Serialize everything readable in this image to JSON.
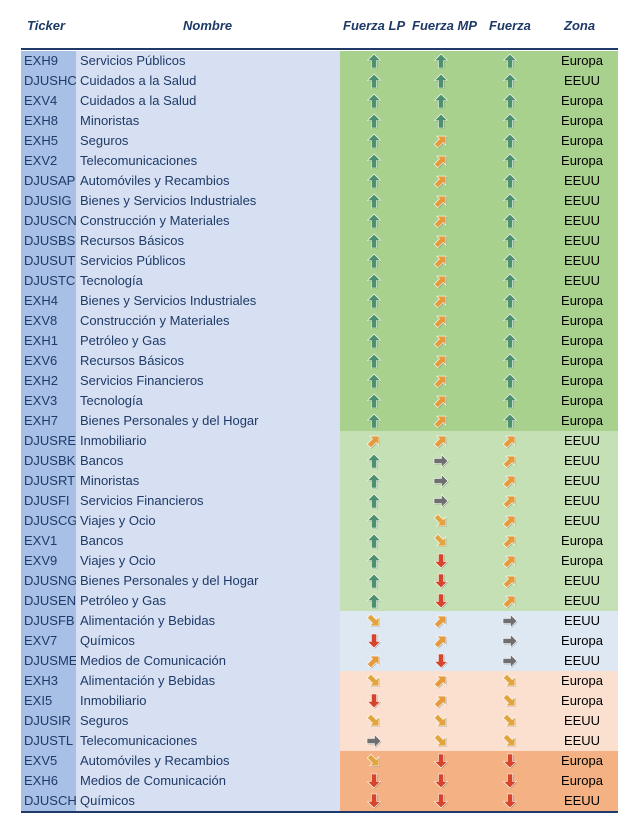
{
  "headers": {
    "ticker": "Ticker",
    "nombre": "Nombre",
    "fuerza_lp": "Fuerza LP",
    "fuerza_mp": "Fuerza MP",
    "fuerza": "Fuerza",
    "zona": "Zona"
  },
  "colors": {
    "up": "#4e8f6e",
    "diag_up": "#e59b3c",
    "right": "#6f6f6f",
    "diag_down": "#e2a43e",
    "down": "#d6452b",
    "zones": {
      "dkgreen": "#a9d18e",
      "ltgreen": "#c5e0b4",
      "ltblue": "#dde8f3",
      "peach": "#fbe0d0",
      "orange": "#f4b183"
    }
  },
  "icon_names": {
    "up": "arrow-up-icon",
    "diag_up": "arrow-up-right-icon",
    "right": "arrow-right-icon",
    "diag_down": "arrow-down-right-icon",
    "down": "arrow-down-icon"
  },
  "rows": [
    {
      "ticker": "EXH9",
      "nombre": "Servicios Públicos",
      "lp": "up",
      "mp": "up",
      "f": "up",
      "zona": "Europa",
      "bg": "dkgreen"
    },
    {
      "ticker": "DJUSHC",
      "nombre": "Cuidados a la Salud",
      "lp": "up",
      "mp": "up",
      "f": "up",
      "zona": "EEUU",
      "bg": "dkgreen"
    },
    {
      "ticker": "EXV4",
      "nombre": "Cuidados a la Salud",
      "lp": "up",
      "mp": "up",
      "f": "up",
      "zona": "Europa",
      "bg": "dkgreen"
    },
    {
      "ticker": "EXH8",
      "nombre": "Minoristas",
      "lp": "up",
      "mp": "up",
      "f": "up",
      "zona": "Europa",
      "bg": "dkgreen"
    },
    {
      "ticker": "EXH5",
      "nombre": "Seguros",
      "lp": "up",
      "mp": "diag_up",
      "f": "up",
      "zona": "Europa",
      "bg": "dkgreen"
    },
    {
      "ticker": "EXV2",
      "nombre": "Telecomunicaciones",
      "lp": "up",
      "mp": "diag_up",
      "f": "up",
      "zona": "Europa",
      "bg": "dkgreen"
    },
    {
      "ticker": "DJUSAP",
      "nombre": "Automóviles y Recambios",
      "lp": "up",
      "mp": "diag_up",
      "f": "up",
      "zona": "EEUU",
      "bg": "dkgreen"
    },
    {
      "ticker": "DJUSIG",
      "nombre": "Bienes y Servicios Industriales",
      "lp": "up",
      "mp": "diag_up",
      "f": "up",
      "zona": "EEUU",
      "bg": "dkgreen"
    },
    {
      "ticker": "DJUSCN",
      "nombre": "Construcción y Materiales",
      "lp": "up",
      "mp": "diag_up",
      "f": "up",
      "zona": "EEUU",
      "bg": "dkgreen"
    },
    {
      "ticker": "DJUSBS",
      "nombre": "Recursos Básicos",
      "lp": "up",
      "mp": "diag_up",
      "f": "up",
      "zona": "EEUU",
      "bg": "dkgreen"
    },
    {
      "ticker": "DJUSUT",
      "nombre": "Servicios Públicos",
      "lp": "up",
      "mp": "diag_up",
      "f": "up",
      "zona": "EEUU",
      "bg": "dkgreen"
    },
    {
      "ticker": "DJUSTC",
      "nombre": "Tecnología",
      "lp": "up",
      "mp": "diag_up",
      "f": "up",
      "zona": "EEUU",
      "bg": "dkgreen"
    },
    {
      "ticker": "EXH4",
      "nombre": "Bienes y Servicios Industriales",
      "lp": "up",
      "mp": "diag_up",
      "f": "up",
      "zona": "Europa",
      "bg": "dkgreen"
    },
    {
      "ticker": "EXV8",
      "nombre": "Construcción y Materiales",
      "lp": "up",
      "mp": "diag_up",
      "f": "up",
      "zona": "Europa",
      "bg": "dkgreen"
    },
    {
      "ticker": "EXH1",
      "nombre": "Petróleo y Gas",
      "lp": "up",
      "mp": "diag_up",
      "f": "up",
      "zona": "Europa",
      "bg": "dkgreen"
    },
    {
      "ticker": "EXV6",
      "nombre": "Recursos Básicos",
      "lp": "up",
      "mp": "diag_up",
      "f": "up",
      "zona": "Europa",
      "bg": "dkgreen"
    },
    {
      "ticker": "EXH2",
      "nombre": "Servicios Financieros",
      "lp": "up",
      "mp": "diag_up",
      "f": "up",
      "zona": "Europa",
      "bg": "dkgreen"
    },
    {
      "ticker": "EXV3",
      "nombre": "Tecnología",
      "lp": "up",
      "mp": "diag_up",
      "f": "up",
      "zona": "Europa",
      "bg": "dkgreen"
    },
    {
      "ticker": "EXH7",
      "nombre": "Bienes Personales y del Hogar",
      "lp": "up",
      "mp": "diag_up",
      "f": "up",
      "zona": "Europa",
      "bg": "dkgreen"
    },
    {
      "ticker": "DJUSRE",
      "nombre": "Inmobiliario",
      "lp": "diag_up",
      "mp": "diag_up",
      "f": "diag_up",
      "zona": "EEUU",
      "bg": "ltgreen"
    },
    {
      "ticker": "DJUSBK",
      "nombre": "Bancos",
      "lp": "up",
      "mp": "right",
      "f": "diag_up",
      "zona": "EEUU",
      "bg": "ltgreen"
    },
    {
      "ticker": "DJUSRT",
      "nombre": "Minoristas",
      "lp": "up",
      "mp": "right",
      "f": "diag_up",
      "zona": "EEUU",
      "bg": "ltgreen"
    },
    {
      "ticker": "DJUSFI",
      "nombre": "Servicios Financieros",
      "lp": "up",
      "mp": "right",
      "f": "diag_up",
      "zona": "EEUU",
      "bg": "ltgreen"
    },
    {
      "ticker": "DJUSCG",
      "nombre": "Viajes y Ocio",
      "lp": "up",
      "mp": "diag_down",
      "f": "diag_up",
      "zona": "EEUU",
      "bg": "ltgreen"
    },
    {
      "ticker": "EXV1",
      "nombre": "Bancos",
      "lp": "up",
      "mp": "diag_down",
      "f": "diag_up",
      "zona": "Europa",
      "bg": "ltgreen"
    },
    {
      "ticker": "EXV9",
      "nombre": "Viajes y Ocio",
      "lp": "up",
      "mp": "down",
      "f": "diag_up",
      "zona": "Europa",
      "bg": "ltgreen"
    },
    {
      "ticker": "DJUSNG",
      "nombre": "Bienes Personales y del Hogar",
      "lp": "up",
      "mp": "down",
      "f": "diag_up",
      "zona": "EEUU",
      "bg": "ltgreen"
    },
    {
      "ticker": "DJUSEN",
      "nombre": "Petróleo y Gas",
      "lp": "up",
      "mp": "down",
      "f": "diag_up",
      "zona": "EEUU",
      "bg": "ltgreen"
    },
    {
      "ticker": "DJUSFB",
      "nombre": "Alimentación y Bebidas",
      "lp": "diag_down",
      "mp": "diag_up",
      "f": "right",
      "zona": "EEUU",
      "bg": "ltblue"
    },
    {
      "ticker": "EXV7",
      "nombre": "Químicos",
      "lp": "down",
      "mp": "diag_up",
      "f": "right",
      "zona": "Europa",
      "bg": "ltblue"
    },
    {
      "ticker": "DJUSME",
      "nombre": "Medios de Comunicación",
      "lp": "diag_up",
      "mp": "down",
      "f": "right",
      "zona": "EEUU",
      "bg": "ltblue"
    },
    {
      "ticker": "EXH3",
      "nombre": "Alimentación y Bebidas",
      "lp": "diag_down",
      "mp": "diag_up",
      "f": "diag_down",
      "zona": "Europa",
      "bg": "peach"
    },
    {
      "ticker": "EXI5",
      "nombre": "Inmobiliario",
      "lp": "down",
      "mp": "diag_up",
      "f": "diag_down",
      "zona": "Europa",
      "bg": "peach"
    },
    {
      "ticker": "DJUSIR",
      "nombre": "Seguros",
      "lp": "diag_down",
      "mp": "diag_down",
      "f": "diag_down",
      "zona": "EEUU",
      "bg": "peach"
    },
    {
      "ticker": "DJUSTL",
      "nombre": "Telecomunicaciones",
      "lp": "right",
      "mp": "diag_down",
      "f": "diag_down",
      "zona": "EEUU",
      "bg": "peach"
    },
    {
      "ticker": "EXV5",
      "nombre": "Automóviles y Recambios",
      "lp": "diag_down",
      "mp": "down",
      "f": "down",
      "zona": "Europa",
      "bg": "orange"
    },
    {
      "ticker": "EXH6",
      "nombre": "Medios de Comunicación",
      "lp": "down",
      "mp": "down",
      "f": "down",
      "zona": "Europa",
      "bg": "orange"
    },
    {
      "ticker": "DJUSCH",
      "nombre": "Químicos",
      "lp": "down",
      "mp": "down",
      "f": "down",
      "zona": "EEUU",
      "bg": "orange"
    }
  ]
}
